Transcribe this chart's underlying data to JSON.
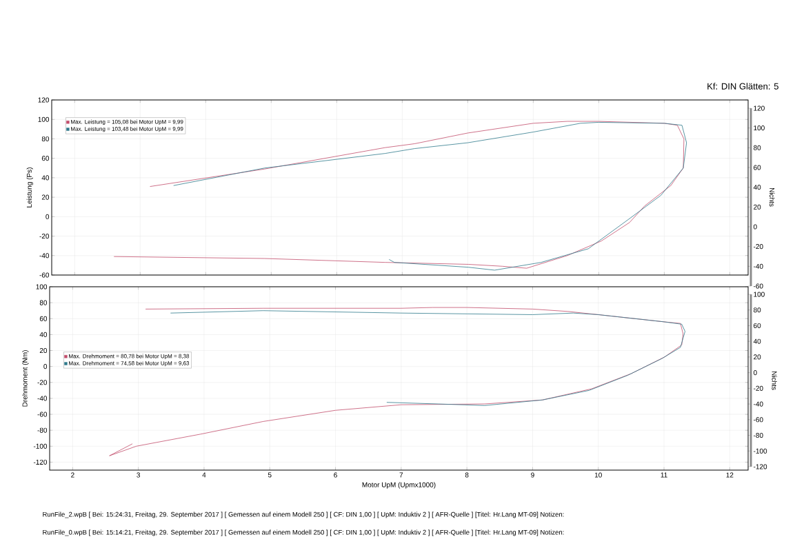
{
  "chart_data": [
    {
      "type": "line",
      "subtitle": "Kf: DIN Glätten: 5",
      "ylabel": "Leistung (Ps)",
      "y2label": "Nichts",
      "xlim": [
        1.65,
        12.28
      ],
      "xticks": [
        2,
        3,
        4,
        5,
        6,
        7,
        8,
        9,
        10,
        11,
        12
      ],
      "ylim": [
        -60,
        120
      ],
      "yticks": [
        -60,
        -40,
        -20,
        0,
        20,
        40,
        60,
        80,
        100,
        120
      ],
      "y2lim": [
        -60,
        120
      ],
      "y2ticks": [
        -60,
        -40,
        -20,
        0,
        20,
        40,
        60,
        80,
        100,
        120
      ],
      "tick_labels": "y",
      "grid": true,
      "legend": "top left",
      "series": [
        {
          "name": "Max. Leistung = 105,08 bei Motor UpM = 9,99",
          "color": "#c24d6b",
          "x": [
            3.15,
            4.9,
            6.74,
            7.19,
            8,
            9,
            9.52,
            10,
            11,
            11.2,
            11.3,
            11.29,
            11.1,
            10.7,
            10.47,
            10.04,
            9.52,
            8.9,
            8.53,
            8.01,
            6.74,
            4.9,
            2.6
          ],
          "values": [
            31,
            49,
            71,
            75,
            86,
            96,
            98,
            98,
            96,
            94,
            80,
            50,
            32,
            11,
            -6,
            -25,
            -40,
            -53,
            -51,
            -49,
            -47,
            -43,
            -41
          ]
        },
        {
          "name": "Max. Leistung = 103,48 bei Motor UpM = 9,99",
          "color": "#2f7a8c",
          "x": [
            3.51,
            4.9,
            6.74,
            7.19,
            8,
            9,
            9.72,
            10,
            11,
            11.27,
            11.34,
            11.29,
            10.95,
            10.47,
            9.84,
            9.12,
            8.41,
            8.01,
            6.88,
            6.8
          ],
          "values": [
            32,
            50,
            65,
            70,
            76,
            87,
            96,
            97,
            96,
            94,
            76,
            50,
            22,
            -2,
            -33,
            -47,
            -55,
            -52,
            -47,
            -44
          ]
        }
      ]
    },
    {
      "type": "line",
      "xlabel": "Motor UpM (Upmx1000)",
      "ylabel": "Drehmoment (Nm)",
      "y2label": "Nichts",
      "xlim": [
        1.65,
        12.28
      ],
      "xticks": [
        2,
        3,
        4,
        5,
        6,
        7,
        8,
        9,
        10,
        11,
        12
      ],
      "ylim": [
        -130,
        100
      ],
      "yticks": [
        -120,
        -100,
        -80,
        -60,
        -40,
        -20,
        0,
        20,
        40,
        60,
        80,
        100
      ],
      "y2lim": [
        -120,
        100
      ],
      "y2ticks": [
        -120,
        -100,
        -80,
        -60,
        -40,
        -20,
        0,
        20,
        40,
        60,
        80,
        100
      ],
      "grid": true,
      "legend": "left",
      "annotations": [
        "RunFile_2.wpB [ Bei: 15:24:31, Freitag, 29. September 2017 ] [ Gemessen auf einem Modell 250 ] [ CF: DIN 1,00 ] [ UpM: Induktiv 2 ] [ AFR-Quelle ] [Titel: Hr.Lang MT-09]  Notizen:",
        "RunFile_0.wpB [ Bei: 15:14:21, Freitag, 29. September 2017 ] [ Gemessen auf einem Modell 250 ] [ CF: DIN 1,00 ] [ UpM: Induktiv 2 ] [ AFR-Quelle ] [Titel: Hr.Lang MT-09]  Notizen:"
      ],
      "series": [
        {
          "name": "Max. Drehmoment = 80,78 bei Motor UpM = 8,38",
          "color": "#c24d6b",
          "x": [
            3.11,
            4.9,
            7,
            7.48,
            8,
            9,
            9.54,
            10,
            11,
            11.25,
            11.29,
            11.27,
            11.01,
            10.5,
            9.9,
            9.15,
            8.27,
            7,
            6,
            4.9,
            3.94,
            2.97,
            2.56,
            2.91
          ],
          "values": [
            72,
            73,
            73,
            74,
            74,
            72,
            69,
            65,
            56,
            54,
            41,
            27,
            12,
            -9,
            -28,
            -42,
            -47,
            -48,
            -55,
            -69,
            -85,
            -100,
            -112,
            -97
          ]
        },
        {
          "name": "Max. Drehmoment = 74,58 bei Motor UpM = 9,63",
          "color": "#2f7a8c",
          "x": [
            3.49,
            4.9,
            7,
            8,
            9,
            9.62,
            10,
            11,
            11.27,
            11.32,
            11.25,
            10.97,
            10.45,
            9.86,
            9.15,
            8.27,
            7.56,
            6.78
          ],
          "values": [
            67,
            70,
            67,
            66,
            65,
            67,
            65,
            56,
            53,
            44,
            24,
            10,
            -11,
            -30,
            -42,
            -49,
            -47,
            -45
          ]
        }
      ]
    }
  ]
}
